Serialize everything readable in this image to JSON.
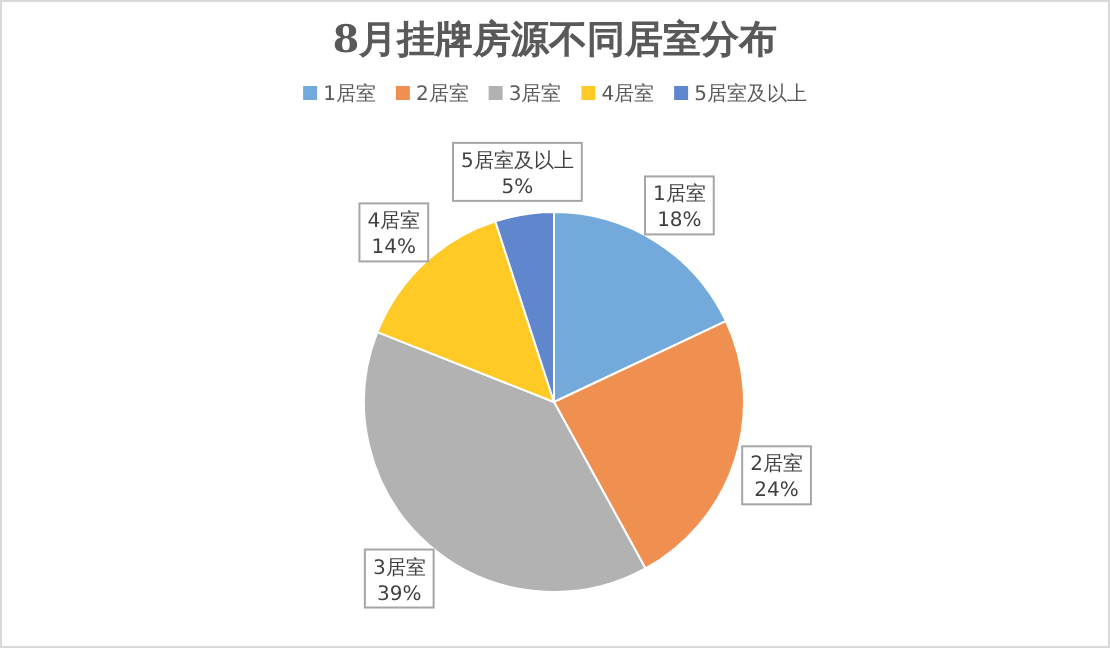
{
  "chart_data": {
    "type": "pie",
    "title": "8月挂牌房源不同居室分布",
    "categories": [
      "1居室",
      "2居室",
      "3居室",
      "4居室",
      "5居室及以上"
    ],
    "values": [
      18,
      24,
      39,
      14,
      5
    ],
    "colors": [
      "#5b9bd5",
      "#ed7d31",
      "#a5a5a5",
      "#ffc000",
      "#4472c4"
    ],
    "value_labels": [
      "18%",
      "24%",
      "39%",
      "14%",
      "5%"
    ],
    "legend": "top"
  }
}
